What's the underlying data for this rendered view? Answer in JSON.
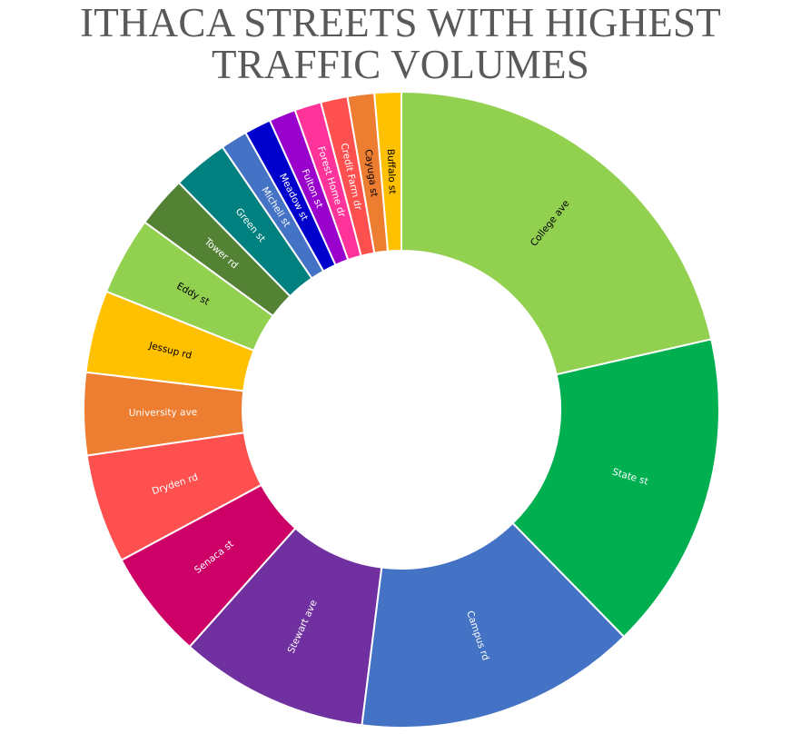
{
  "title": "ITHACA STREETS WITH HIGHEST TRAFFIC VOLUMES",
  "chart_data": {
    "type": "pie",
    "variant": "donut",
    "title": "ITHACA STREETS WITH HIGHEST TRAFFIC VOLUMES",
    "legend": "none",
    "slices": [
      {
        "label": "College ave",
        "value": 20.5,
        "color": "#92D050",
        "text_color": "#000000"
      },
      {
        "label": "State st",
        "value": 15.5,
        "color": "#00B050",
        "text_color": "#ffffff"
      },
      {
        "label": "Campus rd",
        "value": 13.7,
        "color": "#4472C4",
        "text_color": "#ffffff"
      },
      {
        "label": "Stewart ave",
        "value": 9.2,
        "color": "#7030A0",
        "text_color": "#ffffff"
      },
      {
        "label": "Senaca st",
        "value": 5.3,
        "color": "#CC0066",
        "text_color": "#ffffff"
      },
      {
        "label": "Dryden rd",
        "value": 5.3,
        "color": "#FF5050",
        "text_color": "#ffffff"
      },
      {
        "label": "University ave",
        "value": 4.0,
        "color": "#ED7D31",
        "text_color": "#ffffff"
      },
      {
        "label": "Jessup rd",
        "value": 4.0,
        "color": "#FFC000",
        "text_color": "#000000"
      },
      {
        "label": "Eddy st",
        "value": 3.8,
        "color": "#92D050",
        "text_color": "#000000"
      },
      {
        "label": "Tower rd",
        "value": 2.5,
        "color": "#548235",
        "text_color": "#ffffff"
      },
      {
        "label": "Green st",
        "value": 2.7,
        "color": "#00807F",
        "text_color": "#ffffff"
      },
      {
        "label": "Michell st",
        "value": 1.3,
        "color": "#4472C4",
        "text_color": "#ffffff"
      },
      {
        "label": "Meadow st",
        "value": 1.3,
        "color": "#0000CC",
        "text_color": "#ffffff"
      },
      {
        "label": "Fulton st",
        "value": 1.3,
        "color": "#9900CC",
        "text_color": "#ffffff"
      },
      {
        "label": "Forest Home dr",
        "value": 1.3,
        "color": "#FF3399",
        "text_color": "#ffffff"
      },
      {
        "label": "Credit Farm dr",
        "value": 1.3,
        "color": "#FF5050",
        "text_color": "#ffffff"
      },
      {
        "label": "Cayuga st",
        "value": 1.3,
        "color": "#ED7D31",
        "text_color": "#000000"
      },
      {
        "label": "Buffalo st",
        "value": 1.3,
        "color": "#FFC000",
        "text_color": "#000000"
      }
    ]
  }
}
